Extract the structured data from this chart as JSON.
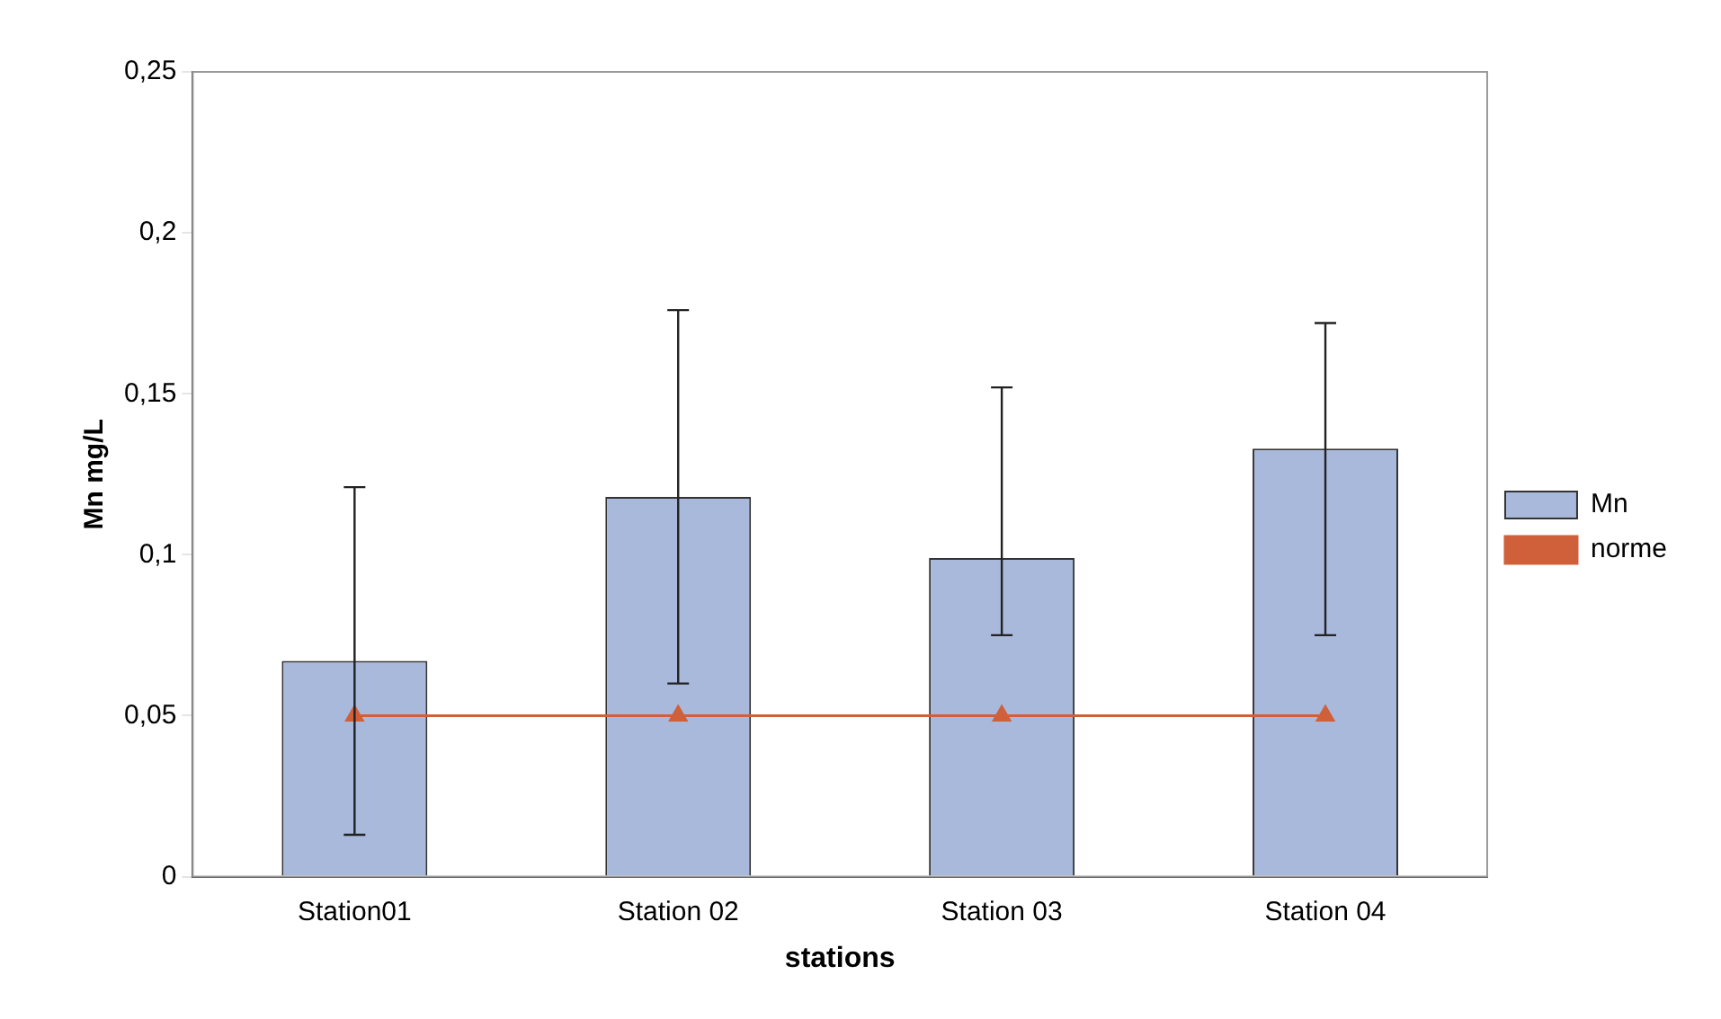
{
  "chart_data": {
    "type": "bar",
    "xlabel": "stations",
    "ylabel": "Mn mg/L",
    "categories": [
      "Station01",
      "Station 02",
      "Station 03",
      "Station 04"
    ],
    "series": [
      {
        "name": "Mn",
        "color": "#a9b9db",
        "values": [
          0.067,
          0.118,
          0.099,
          0.133
        ],
        "errors": [
          [
            0.013,
            0.121
          ],
          [
            0.06,
            0.176
          ],
          [
            0.075,
            0.152
          ],
          [
            0.075,
            0.172
          ]
        ]
      },
      {
        "name": "norme",
        "type": "line",
        "color": "#d0603a",
        "values": [
          0.05,
          0.05,
          0.05,
          0.05
        ],
        "marker": "triangle"
      }
    ],
    "ylim": [
      0,
      0.25
    ],
    "yticks": [
      {
        "value": 0,
        "label": "0"
      },
      {
        "value": 0.05,
        "label": "0,05"
      },
      {
        "value": 0.1,
        "label": "0,1"
      },
      {
        "value": 0.15,
        "label": "0,15"
      },
      {
        "value": 0.2,
        "label": "0,2"
      },
      {
        "value": 0.25,
        "label": "0,25"
      }
    ],
    "grid": false,
    "legend": "right"
  }
}
